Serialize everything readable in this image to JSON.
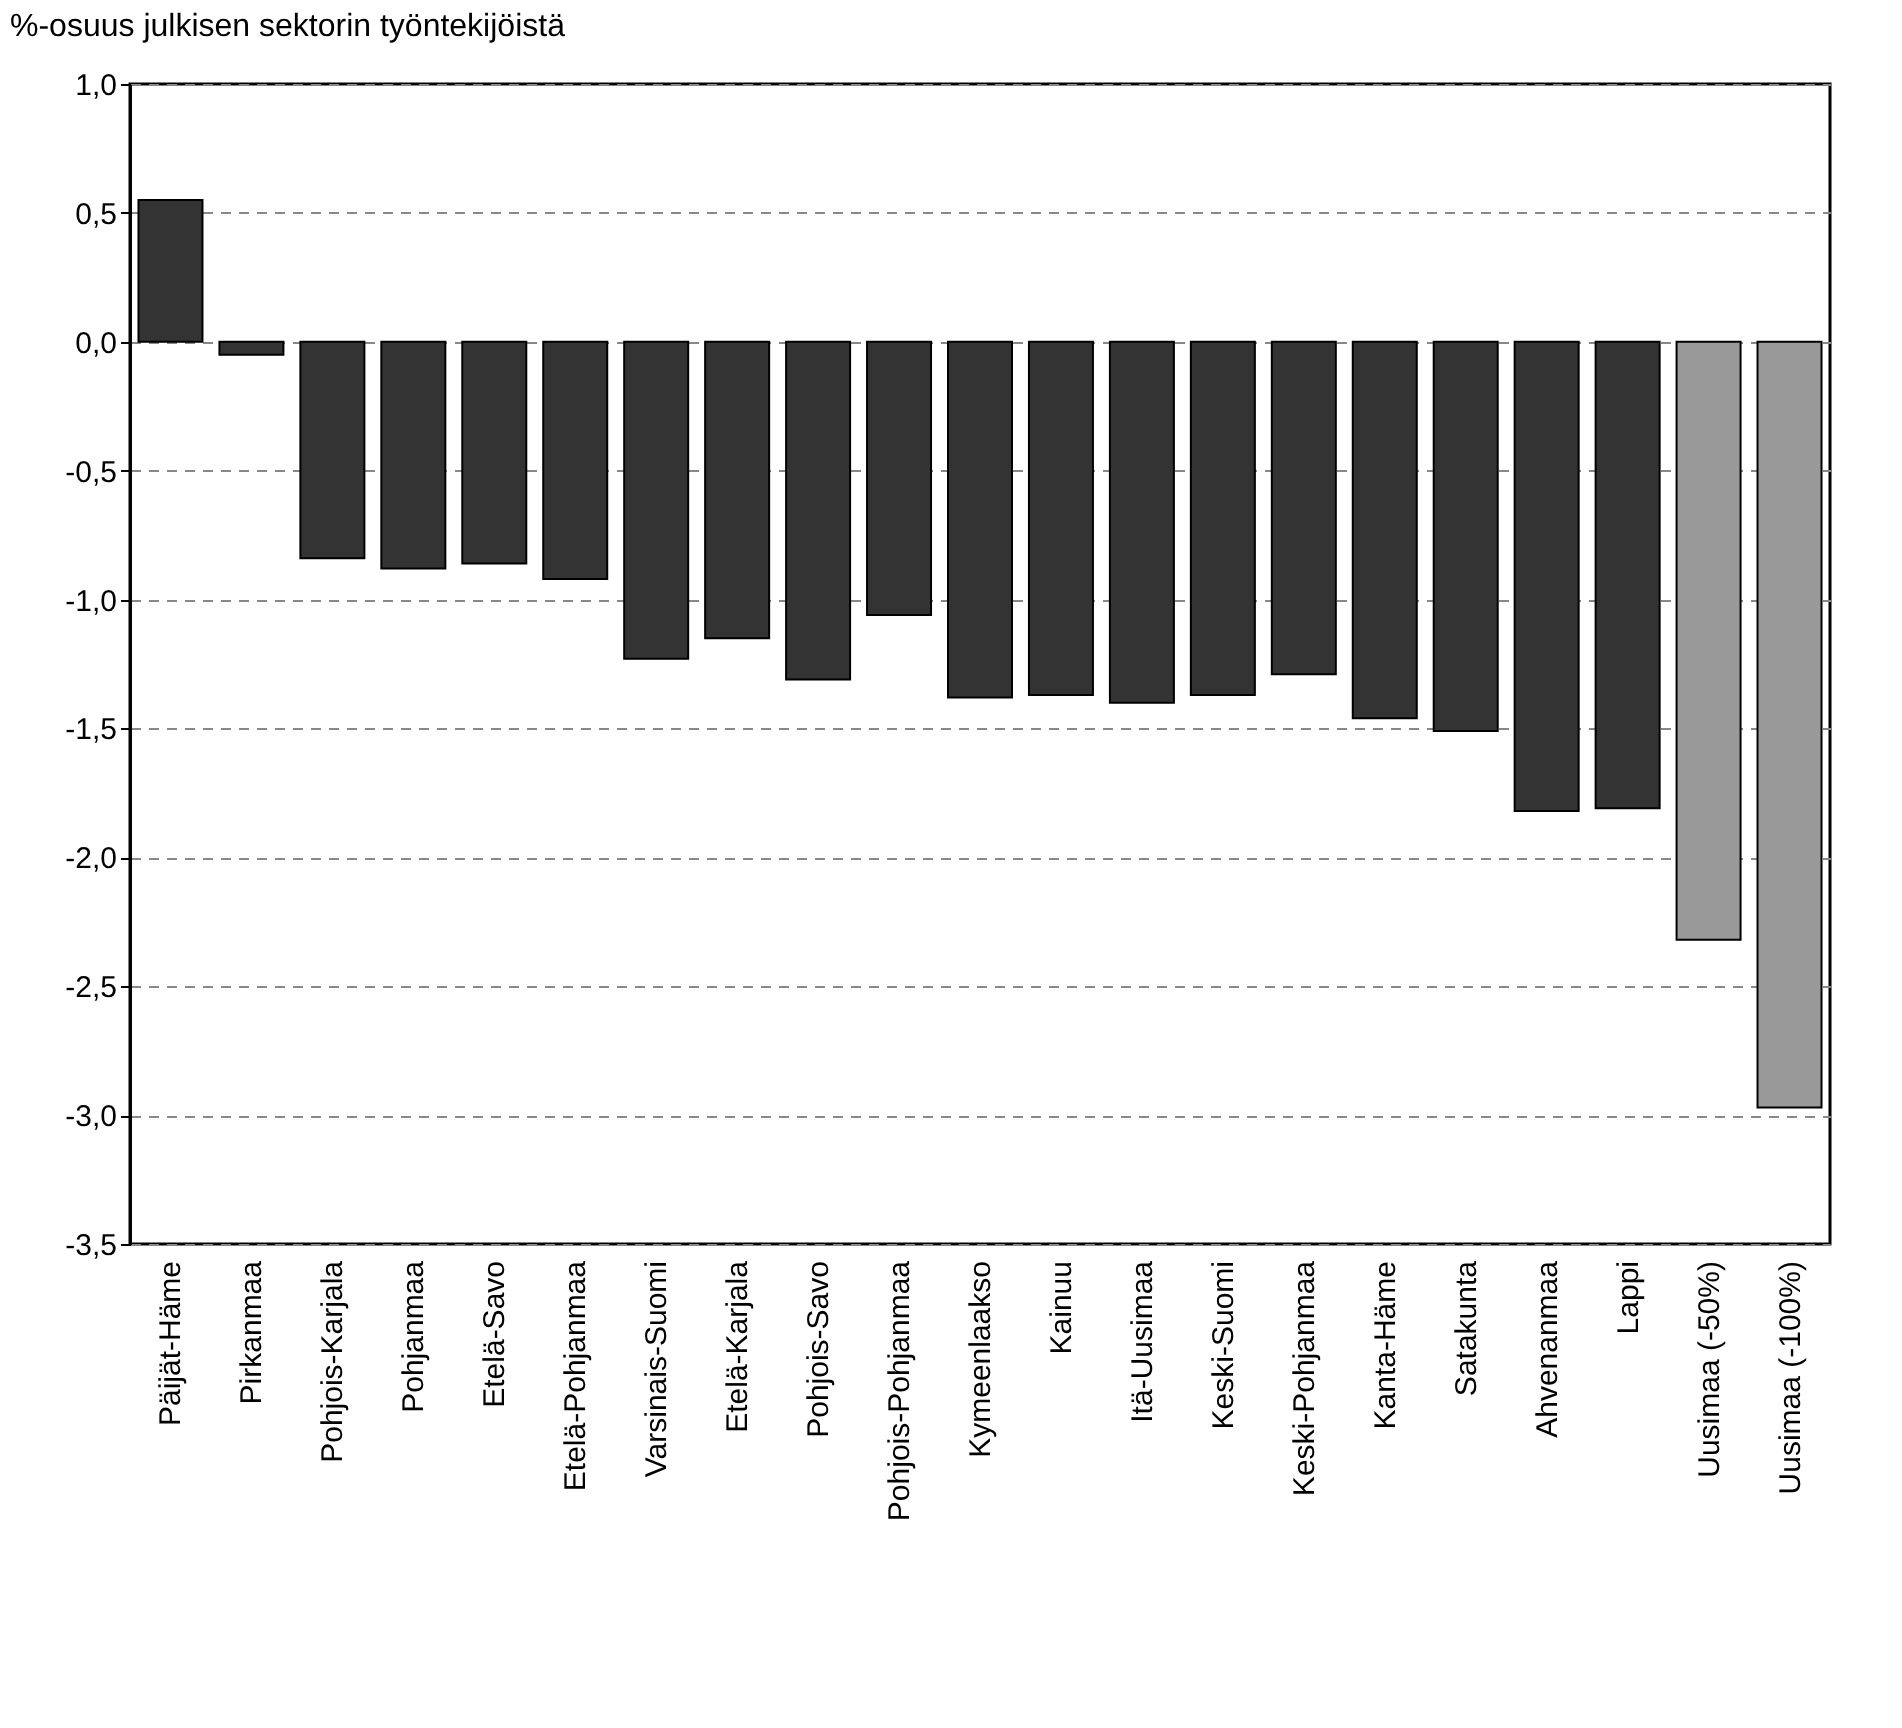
{
  "chart_data": {
    "type": "bar",
    "title": "%-osuus julkisen sektorin työntekijöistä",
    "categories": [
      "Päijät-Häme",
      "Pirkanmaa",
      "Pohjois-Karjala",
      "Pohjanmaa",
      "Etelä-Savo",
      "Etelä-Pohjanmaa",
      "Varsinais-Suomi",
      "Etelä-Karjala",
      "Pohjois-Savo",
      "Pohjois-Pohjanmaa",
      "Kymeenlaakso",
      "Kainuu",
      "Itä-Uusimaa",
      "Keski-Suomi",
      "Keski-Pohjanmaa",
      "Kanta-Häme",
      "Satakunta",
      "Ahvenanmaa",
      "Lappi",
      "Uusimaa (-50%)",
      "Uusimaa (-100%)"
    ],
    "values": [
      0.55,
      -0.05,
      -0.84,
      -0.88,
      -0.86,
      -0.92,
      -1.23,
      -1.15,
      -1.31,
      -1.06,
      -1.38,
      -1.37,
      -1.4,
      -1.37,
      -1.29,
      -1.46,
      -1.51,
      -1.82,
      -1.81,
      -2.32,
      -2.97
    ],
    "colors": [
      "#333333",
      "#333333",
      "#333333",
      "#333333",
      "#333333",
      "#333333",
      "#333333",
      "#333333",
      "#333333",
      "#333333",
      "#333333",
      "#333333",
      "#333333",
      "#333333",
      "#333333",
      "#333333",
      "#333333",
      "#333333",
      "#333333",
      "#999999",
      "#999999"
    ],
    "ylim": [
      -3.5,
      1.0
    ],
    "yticks": [
      {
        "value": -3.5,
        "label": "-3,5"
      },
      {
        "value": -3.0,
        "label": "-3,0"
      },
      {
        "value": -2.5,
        "label": "-2,5"
      },
      {
        "value": -2.0,
        "label": "-2,0"
      },
      {
        "value": -1.5,
        "label": "-1,5"
      },
      {
        "value": -1.0,
        "label": "-1,0"
      },
      {
        "value": -0.5,
        "label": "-0,5"
      },
      {
        "value": 0.0,
        "label": "0,0"
      },
      {
        "value": 0.5,
        "label": "0,5"
      },
      {
        "value": 1.0,
        "label": "1,0"
      }
    ],
    "grid": "y",
    "legend": false
  }
}
